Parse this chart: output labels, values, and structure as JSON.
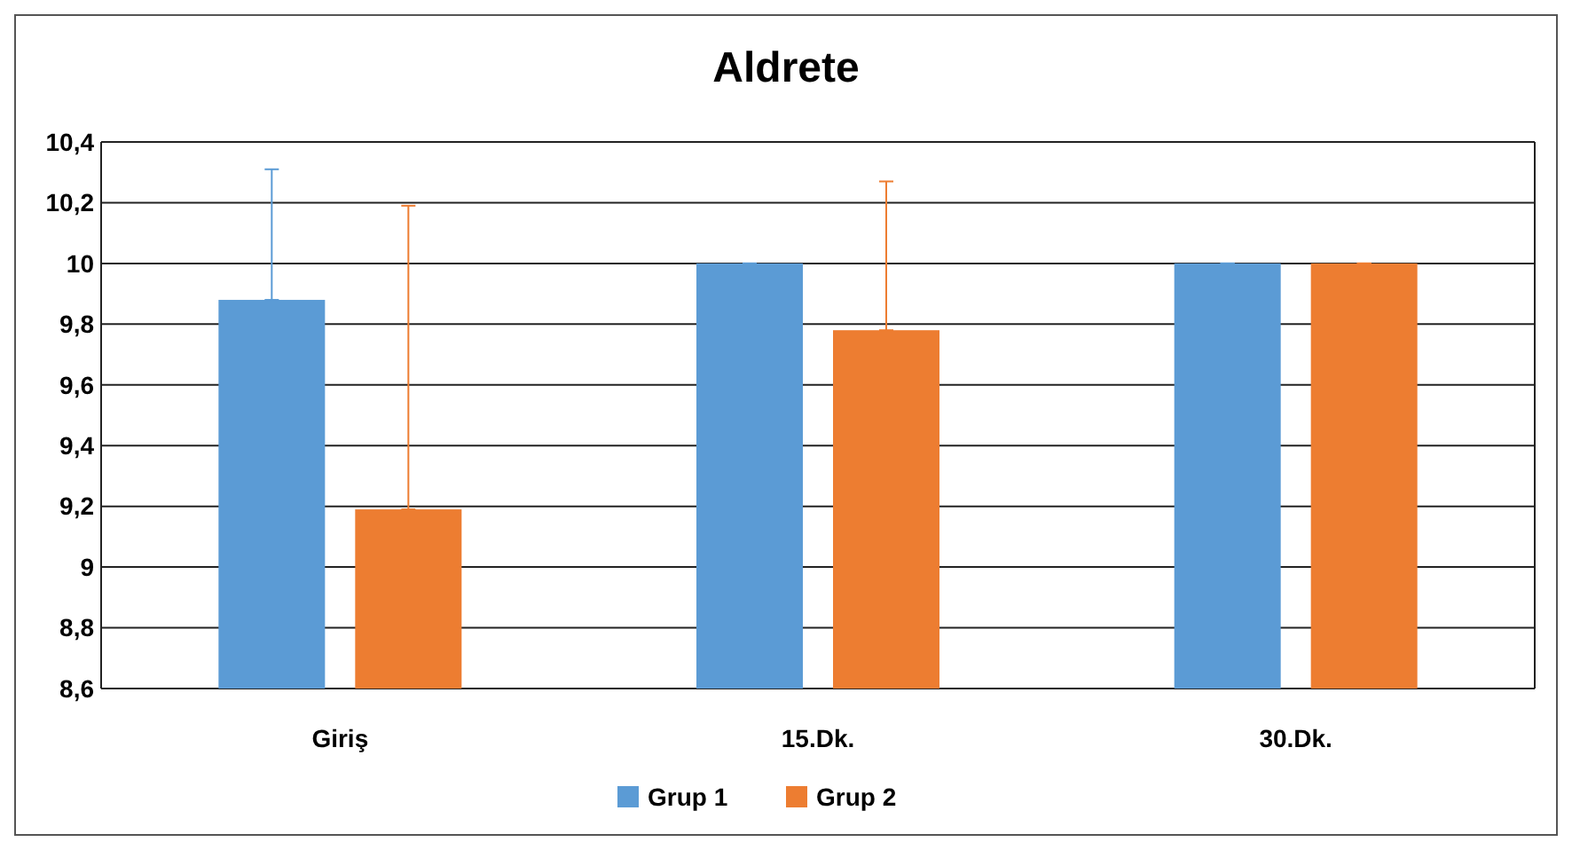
{
  "chart_data": {
    "type": "bar",
    "title": "Aldrete",
    "categories": [
      "Giriş",
      "15.Dk.",
      "30.Dk."
    ],
    "series": [
      {
        "name": "Grup 1",
        "color": "#5b9bd5",
        "values": [
          9.88,
          10,
          10
        ],
        "errors": [
          [
            9.88,
            10.31
          ],
          [
            10,
            10
          ],
          [
            10,
            10
          ]
        ]
      },
      {
        "name": "Grup 2",
        "color": "#ed7d31",
        "values": [
          9.19,
          9.78,
          10
        ],
        "errors": [
          [
            9.19,
            10.19
          ],
          [
            9.78,
            10.27
          ],
          [
            10,
            10
          ]
        ]
      }
    ],
    "ylim": [
      8.6,
      10.4
    ],
    "yticks": [
      {
        "value": 8.6,
        "label": "8,6"
      },
      {
        "value": 8.8,
        "label": "8,8"
      },
      9,
      {
        "value": 9.2,
        "label": "9,2"
      },
      {
        "value": 9.4,
        "label": "9,4"
      },
      {
        "value": 9.6,
        "label": "9,6"
      },
      {
        "value": 9.8,
        "label": "9,8"
      },
      10,
      {
        "value": 10.2,
        "label": "10,2"
      },
      {
        "value": 10.4,
        "label": "10,4"
      }
    ],
    "grid": "y",
    "legend": "bottom"
  }
}
